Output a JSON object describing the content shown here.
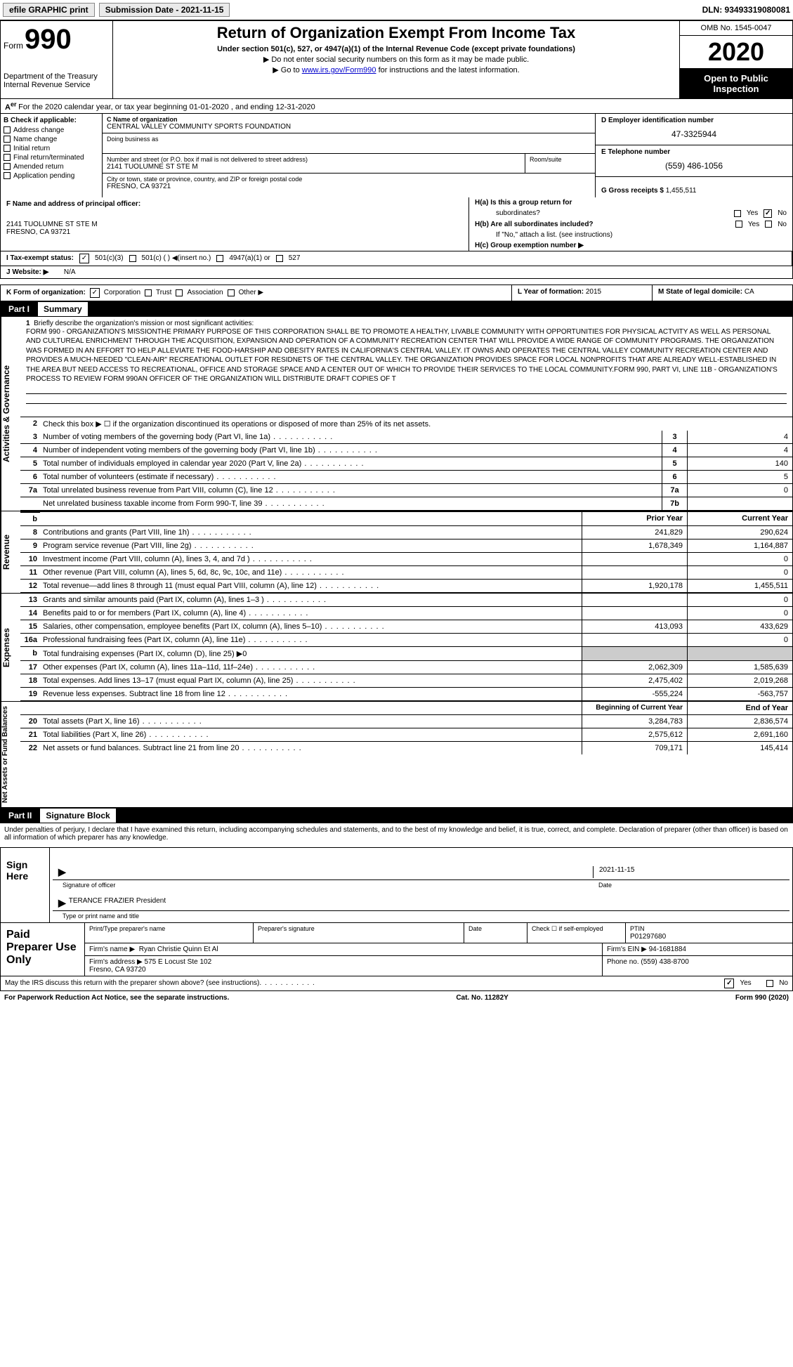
{
  "topbar": {
    "efile_label": "efile GRAPHIC print",
    "submission_label": "Submission Date - 2021-11-15",
    "dln_label": "DLN: 93493319080081"
  },
  "header": {
    "form_prefix": "Form",
    "form_number": "990",
    "dept": "Department of the Treasury\nInternal Revenue Service",
    "title": "Return of Organization Exempt From Income Tax",
    "subtitle": "Under section 501(c), 527, or 4947(a)(1) of the Internal Revenue Code (except private foundations)",
    "instr_ssn": "▶ Do not enter social security numbers on this form as it may be made public.",
    "instr_goto_prefix": "▶ Go to ",
    "instr_goto_link": "www.irs.gov/Form990",
    "instr_goto_suffix": " for instructions and the latest information.",
    "omb": "OMB No. 1545-0047",
    "year": "2020",
    "inspection": "Open to Public Inspection"
  },
  "tax_year": "For the 2020 calendar year, or tax year beginning 01-01-2020    , and ending 12-31-2020",
  "section_b": {
    "title": "B Check if applicable:",
    "items": [
      "Address change",
      "Name change",
      "Initial return",
      "Final return/terminated",
      "Amended return",
      "Application pending"
    ]
  },
  "section_c": {
    "name_label": "C Name of organization",
    "name": "CENTRAL VALLEY COMMUNITY SPORTS FOUNDATION",
    "dba_label": "Doing business as",
    "dba": "",
    "street_label": "Number and street (or P.O. box if mail is not delivered to street address)",
    "street": "2141 TUOLUMNE ST STE M",
    "room_label": "Room/suite",
    "city_label": "City or town, state or province, country, and ZIP or foreign postal code",
    "city": "FRESNO, CA  93721"
  },
  "section_d": {
    "label": "D Employer identification number",
    "value": "47-3325944",
    "e_label": "E Telephone number",
    "e_value": "(559) 486-1056",
    "g_label": "G Gross receipts $",
    "g_value": "1,455,511"
  },
  "section_f": {
    "label": "F  Name and address of principal officer:",
    "addr1": "2141 TUOLUMNE ST STE M",
    "addr2": "FRESNO, CA  93721"
  },
  "section_h": {
    "ha_label": "H(a)  Is this a group return for",
    "ha_sub": "subordinates?",
    "hb_label": "H(b)  Are all subordinates included?",
    "hb_note": "If \"No,\" attach a list. (see instructions)",
    "hc_label": "H(c)  Group exemption number ▶",
    "yes": "Yes",
    "no": "No"
  },
  "row_i": {
    "label": "I   Tax-exempt status:",
    "opt1": "501(c)(3)",
    "opt2": "501(c) (  ) ◀(insert no.)",
    "opt3": "4947(a)(1) or",
    "opt4": "527"
  },
  "row_j": {
    "label": "J   Website: ▶",
    "value": "N/A"
  },
  "row_k": {
    "label": "K Form of organization:",
    "opts": [
      "Corporation",
      "Trust",
      "Association",
      "Other ▶"
    ]
  },
  "row_l": {
    "label": "L Year of formation:",
    "value": "2015"
  },
  "row_m": {
    "label": "M State of legal domicile:",
    "value": "CA"
  },
  "part1": {
    "label": "Part I",
    "title": "Summary",
    "side1": "Activities & Governance",
    "side2": "Revenue",
    "side3": "Expenses",
    "side4": "Net Assets or Fund Balances",
    "line1_label": "Briefly describe the organization's mission or most significant activities:",
    "mission": "FORM 990 - ORGANIZATION'S MISSIONTHE PRIMARY PURPOSE OF THIS CORPORATION SHALL BE TO PROMOTE A HEALTHY, LIVABLE COMMUNITY WITH OPPORTUNITIES FOR PHYSICAL ACTVITY AS WELL AS PERSONAL AND CULTUREAL ENRICHMENT THROUGH THE ACQUISITION, EXPANSION AND OPERATION OF A COMMUNITY RECREATION CENTER THAT WILL PROVIDE A WIDE RANGE OF COMMUNITY PROGRAMS. THE ORGANIZATION WAS FORMED IN AN EFFORT TO HELP ALLEVIATE THE FOOD-HARSHIP AND OBESITY RATES IN CALIFORNIA'S CENTRAL VALLEY. IT OWNS AND OPERATES THE CENTRAL VALLEY COMMUNITY RECREATION CENTER AND PROVIDES A MUCH-NEEDED \"CLEAN-AIR\" RECREATIONAL OUTLET FOR RESIDNETS OF THE CENTRAL VALLEY. THE ORGANIZATION PROVIDES SPACE FOR LOCAL NONPROFITS THAT ARE ALREADY WELL-ESTABLISHED IN THE AREA BUT NEED ACCESS TO RECREATIONAL, OFFICE AND STORAGE SPACE AND A CENTER OUT OF WHICH TO PROVIDE THEIR SERVICES TO THE LOCAL COMMUNITY.FORM 990, PART VI, LINE 11B - ORGANIZATION'S PROCESS TO REVIEW FORM 990AN OFFICER OF THE ORGANIZATION WILL DISTRIBUTE DRAFT COPIES OF T",
    "line2": "Check this box ▶ ☐ if the organization discontinued its operations or disposed of more than 25% of its net assets.",
    "lines_gov": [
      {
        "no": "3",
        "text": "Number of voting members of the governing body (Part VI, line 1a)",
        "box": "3",
        "val": "4"
      },
      {
        "no": "4",
        "text": "Number of independent voting members of the governing body (Part VI, line 1b)",
        "box": "4",
        "val": "4"
      },
      {
        "no": "5",
        "text": "Total number of individuals employed in calendar year 2020 (Part V, line 2a)",
        "box": "5",
        "val": "140"
      },
      {
        "no": "6",
        "text": "Total number of volunteers (estimate if necessary)",
        "box": "6",
        "val": "5"
      },
      {
        "no": "7a",
        "text": "Total unrelated business revenue from Part VIII, column (C), line 12",
        "box": "7a",
        "val": "0"
      },
      {
        "no": "",
        "text": "Net unrelated business taxable income from Form 990-T, line 39",
        "box": "7b",
        "val": ""
      }
    ],
    "col_prior": "Prior Year",
    "col_current": "Current Year",
    "lines_rev": [
      {
        "no": "8",
        "text": "Contributions and grants (Part VIII, line 1h)",
        "prior": "241,829",
        "current": "290,624"
      },
      {
        "no": "9",
        "text": "Program service revenue (Part VIII, line 2g)",
        "prior": "1,678,349",
        "current": "1,164,887"
      },
      {
        "no": "10",
        "text": "Investment income (Part VIII, column (A), lines 3, 4, and 7d )",
        "prior": "",
        "current": "0"
      },
      {
        "no": "11",
        "text": "Other revenue (Part VIII, column (A), lines 5, 6d, 8c, 9c, 10c, and 11e)",
        "prior": "",
        "current": "0"
      },
      {
        "no": "12",
        "text": "Total revenue—add lines 8 through 11 (must equal Part VIII, column (A), line 12)",
        "prior": "1,920,178",
        "current": "1,455,511"
      }
    ],
    "lines_exp": [
      {
        "no": "13",
        "text": "Grants and similar amounts paid (Part IX, column (A), lines 1–3 )",
        "prior": "",
        "current": "0"
      },
      {
        "no": "14",
        "text": "Benefits paid to or for members (Part IX, column (A), line 4)",
        "prior": "",
        "current": "0"
      },
      {
        "no": "15",
        "text": "Salaries, other compensation, employee benefits (Part IX, column (A), lines 5–10)",
        "prior": "413,093",
        "current": "433,629"
      },
      {
        "no": "16a",
        "text": "Professional fundraising fees (Part IX, column (A), line 11e)",
        "prior": "",
        "current": "0"
      },
      {
        "no": "b",
        "text": "Total fundraising expenses (Part IX, column (D), line 25) ▶0",
        "prior": "GRAY",
        "current": "GRAY"
      },
      {
        "no": "17",
        "text": "Other expenses (Part IX, column (A), lines 11a–11d, 11f–24e)",
        "prior": "2,062,309",
        "current": "1,585,639"
      },
      {
        "no": "18",
        "text": "Total expenses. Add lines 13–17 (must equal Part IX, column (A), line 25)",
        "prior": "2,475,402",
        "current": "2,019,268"
      },
      {
        "no": "19",
        "text": "Revenue less expenses. Subtract line 18 from line 12",
        "prior": "-555,224",
        "current": "-563,757"
      }
    ],
    "col_begin": "Beginning of Current Year",
    "col_end": "End of Year",
    "lines_net": [
      {
        "no": "20",
        "text": "Total assets (Part X, line 16)",
        "prior": "3,284,783",
        "current": "2,836,574"
      },
      {
        "no": "21",
        "text": "Total liabilities (Part X, line 26)",
        "prior": "2,575,612",
        "current": "2,691,160"
      },
      {
        "no": "22",
        "text": "Net assets or fund balances. Subtract line 21 from line 20",
        "prior": "709,171",
        "current": "145,414"
      }
    ]
  },
  "part2": {
    "label": "Part II",
    "title": "Signature Block",
    "intro": "Under penalties of perjury, I declare that I have examined this return, including accompanying schedules and statements, and to the best of my knowledge and belief, it is true, correct, and complete. Declaration of preparer (other than officer) is based on all information of which preparer has any knowledge.",
    "sign_here": "Sign Here",
    "sig_officer_label": "Signature of officer",
    "sig_date_label": "Date",
    "sig_date": "2021-11-15",
    "officer_name": "TERANCE FRAZIER  President",
    "officer_type_label": "Type or print name and title",
    "paid_label": "Paid Preparer Use Only",
    "print_name_label": "Print/Type preparer's name",
    "prep_sig_label": "Preparer's signature",
    "date_label": "Date",
    "check_self": "Check ☐ if self-employed",
    "ptin_label": "PTIN",
    "ptin": "P01297680",
    "firm_name_label": "Firm's name    ▶",
    "firm_name": "Ryan Christie Quinn Et Al",
    "firm_ein_label": "Firm's EIN ▶",
    "firm_ein": "94-1681884",
    "firm_addr_label": "Firm's address ▶",
    "firm_addr": "575 E Locust Ste 102\nFresno, CA  93720",
    "phone_label": "Phone no.",
    "phone": "(559) 438-8700",
    "discuss": "May the IRS discuss this return with the preparer shown above? (see instructions)"
  },
  "footer": {
    "left": "For Paperwork Reduction Act Notice, see the separate instructions.",
    "center": "Cat. No. 11282Y",
    "right": "Form 990 (2020)"
  }
}
